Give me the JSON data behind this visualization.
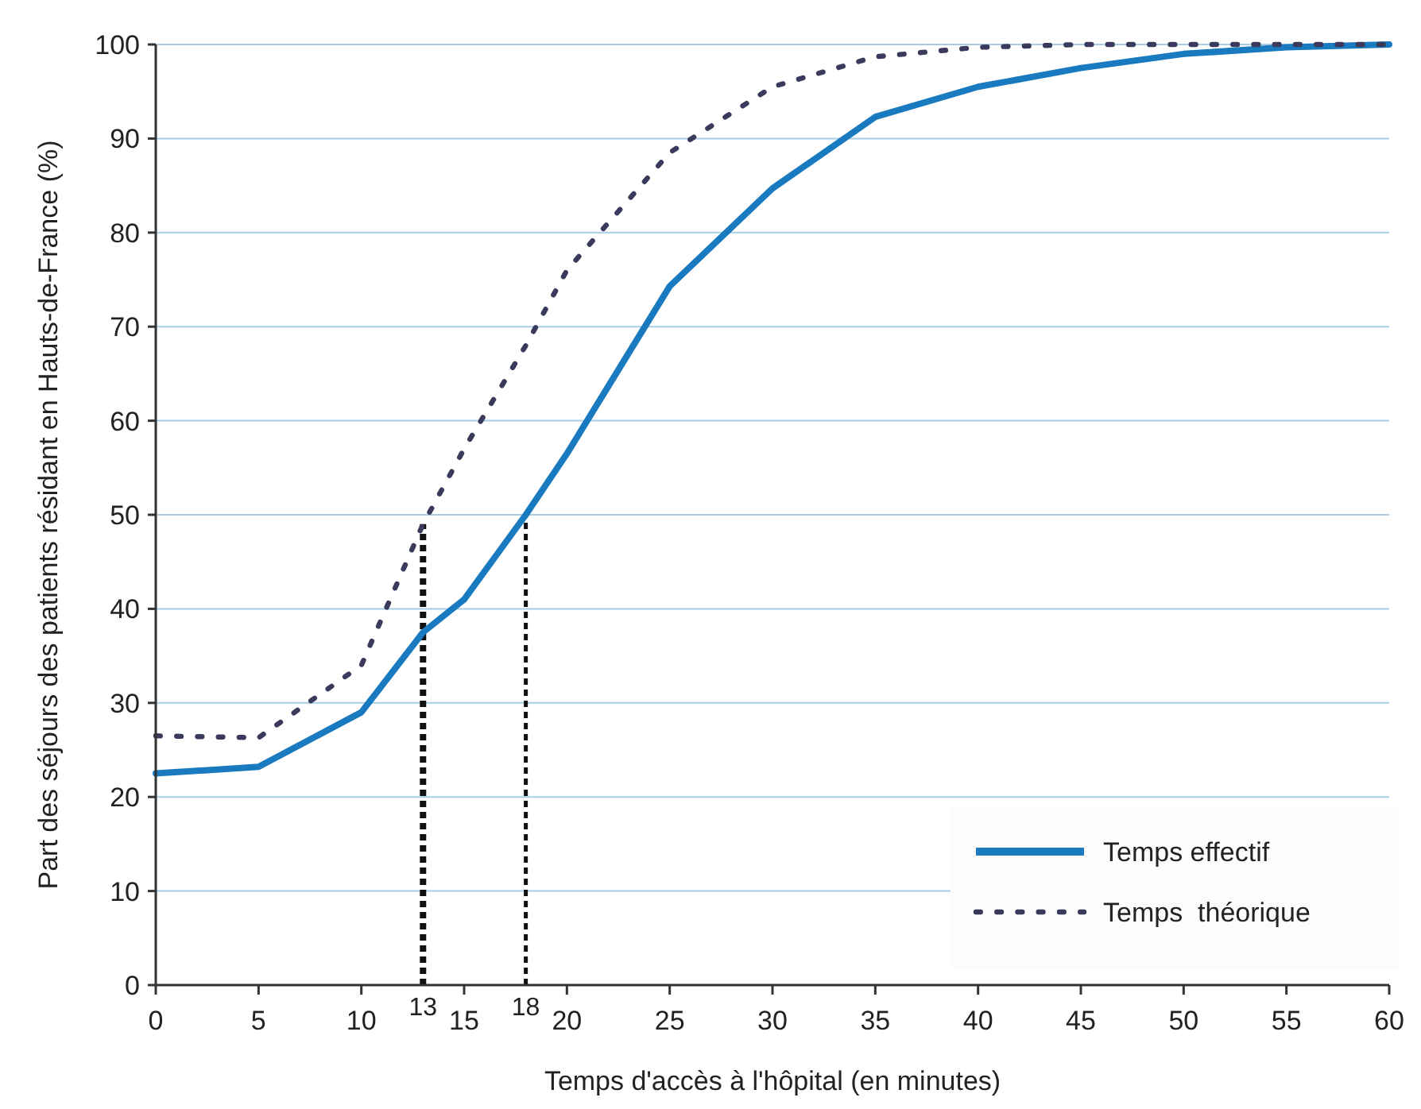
{
  "chart_data": {
    "type": "line",
    "xlabel": "Temps d'accès à l'hôpital (en minutes)",
    "ylabel": "Part des séjours des patients résidant en Hauts-de-France (%)",
    "xlim": [
      0,
      60
    ],
    "ylim": [
      0,
      100
    ],
    "xticks": [
      0,
      5,
      10,
      15,
      20,
      25,
      30,
      35,
      40,
      45,
      50,
      55,
      60
    ],
    "yticks": [
      0,
      10,
      20,
      30,
      40,
      50,
      60,
      70,
      80,
      90,
      100
    ],
    "grid": "y",
    "legend": "bottom right",
    "series": [
      {
        "name": "Temps effectif",
        "color": "#1a7abf",
        "line_style": "solid",
        "x": [
          0,
          5,
          10,
          13,
          15,
          18,
          20,
          25,
          30,
          35,
          40,
          45,
          50,
          55,
          60
        ],
        "values": [
          22.5,
          23.2,
          29,
          37.5,
          41,
          50,
          56.5,
          74.3,
          84.7,
          92.3,
          95.5,
          97.5,
          99,
          99.7,
          100
        ]
      },
      {
        "name": "Temps  théorique",
        "color": "#3a3a5c",
        "line_style": "dotted",
        "x": [
          0,
          5,
          10,
          13,
          15,
          18,
          20,
          25,
          30,
          35,
          40,
          45,
          50,
          55,
          60
        ],
        "values": [
          26.5,
          26.3,
          34,
          49,
          57,
          68,
          76,
          88.5,
          95.5,
          98.7,
          99.7,
          100,
          100,
          100,
          100
        ]
      }
    ],
    "ref_lines": [
      {
        "axis": "x",
        "value": 13,
        "label": "13",
        "color": "#111111",
        "line_style": "dashed"
      },
      {
        "axis": "x",
        "value": 18,
        "label": "18",
        "color": "#111111",
        "line_style": "dashed"
      }
    ]
  }
}
